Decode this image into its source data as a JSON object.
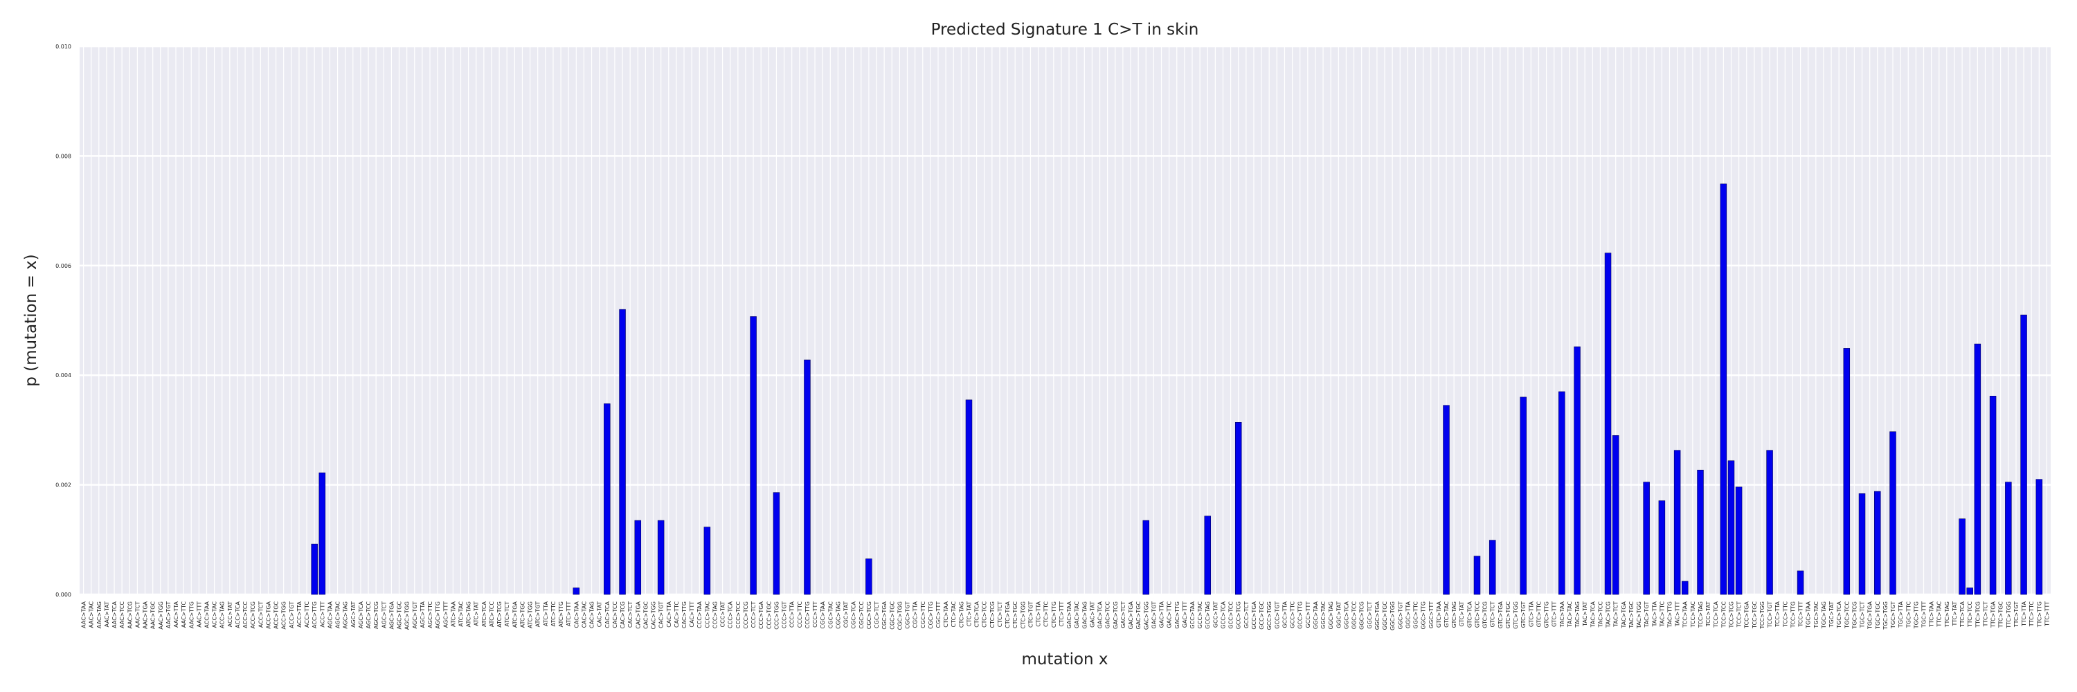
{
  "chart_data": {
    "type": "bar",
    "title": "Predicted Signature 1 C>T in skin",
    "xlabel": "mutation x",
    "ylabel": "p (mutation = x)",
    "color": "#0000ee",
    "grid": true,
    "ylim": [
      0,
      0.01
    ],
    "yticks": [
      {
        "value": 0,
        "label": "0.000"
      },
      {
        "value": 0.002,
        "label": "0.002"
      },
      {
        "value": 0.004,
        "label": "0.004"
      },
      {
        "value": 0.006,
        "label": "0.006"
      },
      {
        "value": 0.008,
        "label": "0.008"
      },
      {
        "value": 0.01,
        "label": "0.010"
      }
    ],
    "categories": [
      "AAC>TAA",
      "AAC>TAC",
      "AAC>TAG",
      "AAC>TAT",
      "AAC>TCA",
      "AAC>TCC",
      "AAC>TCG",
      "AAC>TCT",
      "AAC>TGA",
      "AAC>TGC",
      "AAC>TGG",
      "AAC>TGT",
      "AAC>TTA",
      "AAC>TTC",
      "AAC>TTG",
      "AAC>TTT",
      "ACC>TAA",
      "ACC>TAC",
      "ACC>TAG",
      "ACC>TAT",
      "ACC>TCA",
      "ACC>TCC",
      "ACC>TCG",
      "ACC>TCT",
      "ACC>TGA",
      "ACC>TGC",
      "ACC>TGG",
      "ACC>TGT",
      "ACC>TTA",
      "ACC>TTC",
      "ACC>TTG",
      "ACC>TTT",
      "AGC>TAA",
      "AGC>TAC",
      "AGC>TAG",
      "AGC>TAT",
      "AGC>TCA",
      "AGC>TCC",
      "AGC>TCG",
      "AGC>TCT",
      "AGC>TGA",
      "AGC>TGC",
      "AGC>TGG",
      "AGC>TGT",
      "AGC>TTA",
      "AGC>TTC",
      "AGC>TTG",
      "AGC>TTT",
      "ATC>TAA",
      "ATC>TAC",
      "ATC>TAG",
      "ATC>TAT",
      "ATC>TCA",
      "ATC>TCC",
      "ATC>TCG",
      "ATC>TCT",
      "ATC>TGA",
      "ATC>TGC",
      "ATC>TGG",
      "ATC>TGT",
      "ATC>TTA",
      "ATC>TTC",
      "ATC>TTG",
      "ATC>TTT",
      "CAC>TAA",
      "CAC>TAC",
      "CAC>TAG",
      "CAC>TAT",
      "CAC>TCA",
      "CAC>TCC",
      "CAC>TCG",
      "CAC>TCT",
      "CAC>TGA",
      "CAC>TGC",
      "CAC>TGG",
      "CAC>TGT",
      "CAC>TTA",
      "CAC>TTC",
      "CAC>TTG",
      "CAC>TTT",
      "CCC>TAA",
      "CCC>TAC",
      "CCC>TAG",
      "CCC>TAT",
      "CCC>TCA",
      "CCC>TCC",
      "CCC>TCG",
      "CCC>TCT",
      "CCC>TGA",
      "CCC>TGC",
      "CCC>TGG",
      "CCC>TGT",
      "CCC>TTA",
      "CCC>TTC",
      "CCC>TTG",
      "CCC>TTT",
      "CGC>TAA",
      "CGC>TAC",
      "CGC>TAG",
      "CGC>TAT",
      "CGC>TCA",
      "CGC>TCC",
      "CGC>TCG",
      "CGC>TCT",
      "CGC>TGA",
      "CGC>TGC",
      "CGC>TGG",
      "CGC>TGT",
      "CGC>TTA",
      "CGC>TTC",
      "CGC>TTG",
      "CGC>TTT",
      "CTC>TAA",
      "CTC>TAC",
      "CTC>TAG",
      "CTC>TAT",
      "CTC>TCA",
      "CTC>TCC",
      "CTC>TCG",
      "CTC>TCT",
      "CTC>TGA",
      "CTC>TGC",
      "CTC>TGG",
      "CTC>TGT",
      "CTC>TTA",
      "CTC>TTC",
      "CTC>TTG",
      "CTC>TTT",
      "GAC>TAA",
      "GAC>TAC",
      "GAC>TAG",
      "GAC>TAT",
      "GAC>TCA",
      "GAC>TCC",
      "GAC>TCG",
      "GAC>TCT",
      "GAC>TGA",
      "GAC>TGC",
      "GAC>TGG",
      "GAC>TGT",
      "GAC>TTA",
      "GAC>TTC",
      "GAC>TTG",
      "GAC>TTT",
      "GCC>TAA",
      "GCC>TAC",
      "GCC>TAG",
      "GCC>TAT",
      "GCC>TCA",
      "GCC>TCC",
      "GCC>TCG",
      "GCC>TCT",
      "GCC>TGA",
      "GCC>TGC",
      "GCC>TGG",
      "GCC>TGT",
      "GCC>TTA",
      "GCC>TTC",
      "GCC>TTG",
      "GCC>TTT",
      "GGC>TAA",
      "GGC>TAC",
      "GGC>TAG",
      "GGC>TAT",
      "GGC>TCA",
      "GGC>TCC",
      "GGC>TCG",
      "GGC>TCT",
      "GGC>TGA",
      "GGC>TGC",
      "GGC>TGG",
      "GGC>TGT",
      "GGC>TTA",
      "GGC>TTC",
      "GGC>TTG",
      "GGC>TTT",
      "GTC>TAA",
      "GTC>TAC",
      "GTC>TAG",
      "GTC>TAT",
      "GTC>TCA",
      "GTC>TCC",
      "GTC>TCG",
      "GTC>TCT",
      "GTC>TGA",
      "GTC>TGC",
      "GTC>TGG",
      "GTC>TGT",
      "GTC>TTA",
      "GTC>TTC",
      "GTC>TTG",
      "GTC>TTT",
      "TAC>TAA",
      "TAC>TAC",
      "TAC>TAG",
      "TAC>TAT",
      "TAC>TCA",
      "TAC>TCC",
      "TAC>TCG",
      "TAC>TCT",
      "TAC>TGA",
      "TAC>TGC",
      "TAC>TGG",
      "TAC>TGT",
      "TAC>TTA",
      "TAC>TTC",
      "TAC>TTG",
      "TAC>TTT",
      "TCC>TAA",
      "TCC>TAC",
      "TCC>TAG",
      "TCC>TAT",
      "TCC>TCA",
      "TCC>TCC",
      "TCC>TCG",
      "TCC>TCT",
      "TCC>TGA",
      "TCC>TGC",
      "TCC>TGG",
      "TCC>TGT",
      "TCC>TTA",
      "TCC>TTC",
      "TCC>TTG",
      "TCC>TTT",
      "TGC>TAA",
      "TGC>TAC",
      "TGC>TAG",
      "TGC>TAT",
      "TGC>TCA",
      "TGC>TCC",
      "TGC>TCG",
      "TGC>TCT",
      "TGC>TGA",
      "TGC>TGC",
      "TGC>TGG",
      "TGC>TGT",
      "TGC>TTA",
      "TGC>TTC",
      "TGC>TTG",
      "TGC>TTT",
      "TTC>TAA",
      "TTC>TAC",
      "TTC>TAG",
      "TTC>TAT",
      "TTC>TCA",
      "TTC>TCC",
      "TTC>TCG",
      "TTC>TCT",
      "TTC>TGA",
      "TTC>TGC",
      "TTC>TGG",
      "TTC>TGT",
      "TTC>TTA",
      "TTC>TTC",
      "TTC>TTG",
      "TTC>TTT"
    ],
    "values": [
      0,
      0,
      0,
      0,
      0,
      0,
      0,
      0,
      0,
      0,
      0,
      0,
      0,
      0,
      0,
      0,
      0,
      0,
      0,
      0,
      0,
      0,
      0,
      0,
      0,
      0,
      0,
      0,
      0,
      0,
      0.00092,
      0.00222,
      0,
      0,
      0,
      0,
      0,
      0,
      0,
      0,
      0,
      0,
      0,
      0,
      0,
      0,
      0,
      0,
      0,
      0,
      0,
      0,
      0,
      0,
      0,
      0,
      0,
      0,
      0,
      0,
      0,
      0,
      0,
      0,
      0.00012,
      0,
      0,
      0,
      0.00348,
      0,
      0.0052,
      0,
      0.00135,
      0,
      0,
      0.00135,
      0,
      0,
      0,
      0,
      0,
      0.00123,
      0,
      0,
      0,
      0,
      0,
      0.00507,
      0,
      0,
      0.00186,
      0,
      0,
      0,
      0.00428,
      0,
      0,
      0,
      0,
      0,
      0,
      0,
      0.00065,
      0,
      0,
      0,
      0,
      0,
      0,
      0,
      0,
      0,
      0,
      0,
      0,
      0.00355,
      0,
      0,
      0,
      0,
      0,
      0,
      0,
      0,
      0,
      0,
      0,
      0,
      0,
      0,
      0,
      0,
      0,
      0,
      0,
      0,
      0,
      0,
      0.00135,
      0,
      0,
      0,
      0,
      0,
      0,
      0,
      0.00143,
      0,
      0,
      0,
      0.00314,
      0,
      0,
      0,
      0,
      0,
      0,
      0,
      0,
      0,
      0,
      0,
      0,
      0,
      0,
      0,
      0,
      0,
      0,
      0,
      0,
      0,
      0,
      0,
      0,
      0,
      0,
      0.00345,
      0,
      0,
      0,
      0.0007,
      0,
      0.00099,
      0,
      0,
      0,
      0.0036,
      0,
      0,
      0,
      0,
      0.0037,
      0,
      0.00452,
      0,
      0,
      0,
      0.00623,
      0.0029,
      0,
      0,
      0,
      0.00205,
      0,
      0.00171,
      0,
      0.00263,
      0.00024,
      0,
      0.00227,
      0,
      0,
      0.00749,
      0.00244,
      0.00196,
      0,
      0,
      0,
      0.00263,
      0,
      0,
      0,
      0.00043,
      0,
      0,
      0,
      0,
      0,
      0.00449,
      0,
      0.00184,
      0,
      0.00188,
      0,
      0.00297,
      0,
      0,
      0,
      0,
      0,
      0,
      0,
      0,
      0.00138,
      0.00012,
      0.00457,
      0,
      0.00362,
      0,
      0.00205,
      0,
      0.0051,
      0,
      0.0021,
      0
    ]
  }
}
